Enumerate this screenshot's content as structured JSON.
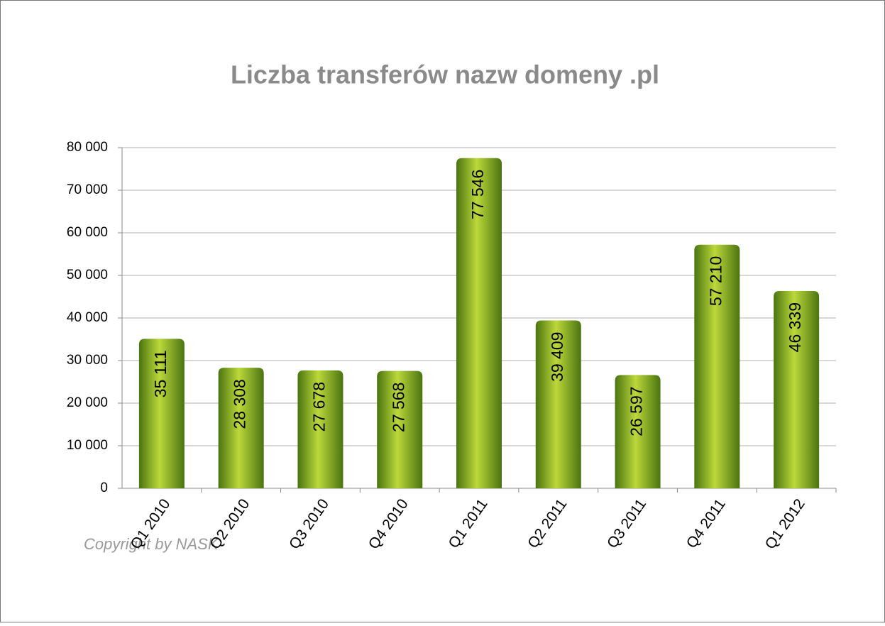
{
  "chart_data": {
    "type": "bar",
    "title": "Liczba transferów nazw domeny .pl",
    "categories": [
      "Q1 2010",
      "Q2 2010",
      "Q3 2010",
      "Q4 2010",
      "Q1 2011",
      "Q2 2011",
      "Q3 2011",
      "Q4 2011",
      "Q1 2012"
    ],
    "values": [
      35111,
      28308,
      27678,
      27568,
      77546,
      39409,
      26597,
      57210,
      46339
    ],
    "value_labels": [
      "35 111",
      "28 308",
      "27 678",
      "27 568",
      "77 546",
      "39 409",
      "26 597",
      "57 210",
      "46 339"
    ],
    "color": "#8fb52a",
    "ylim": [
      0,
      80000
    ],
    "yticks": [
      0,
      {
        "value": 10000,
        "label": "10 000"
      },
      {
        "value": 20000,
        "label": "20 000"
      },
      {
        "value": 30000,
        "label": "30 000"
      },
      {
        "value": 40000,
        "label": "40 000"
      },
      {
        "value": 50000,
        "label": "50 000"
      },
      {
        "value": 60000,
        "label": "60 000"
      },
      {
        "value": 70000,
        "label": "70 000"
      },
      {
        "value": 80000,
        "label": "80 000"
      }
    ],
    "grid": true,
    "copyright": "Copyright by NASK"
  }
}
